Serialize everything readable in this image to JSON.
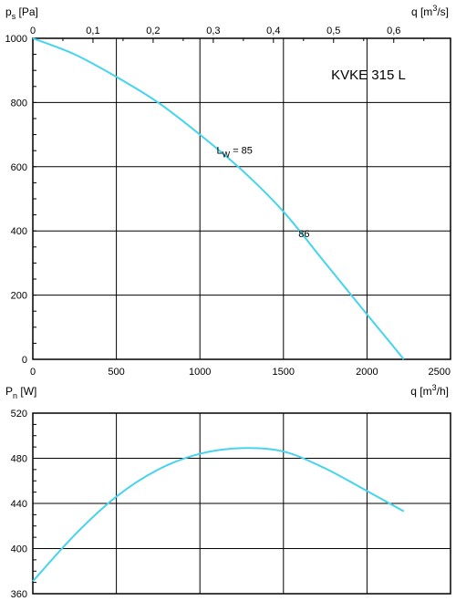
{
  "chart_data": [
    {
      "type": "line",
      "title": "KVKE 315 L",
      "ylabel": {
        "main": "p",
        "sub": "s",
        "unit": "[Pa]"
      },
      "xlabel": {
        "main": "q [m",
        "sup": "3",
        "tail": "/h]"
      },
      "x2label": {
        "main": "q [m",
        "sup": "3",
        "tail": "/s]"
      },
      "xlim": [
        0,
        2500
      ],
      "ylim": [
        0,
        1000
      ],
      "x2lim": [
        0,
        0.6944
      ],
      "xticks": [
        "0",
        "500",
        "1000",
        "1500",
        "2000",
        "2500"
      ],
      "yticks": [
        "0",
        "200",
        "400",
        "600",
        "800",
        "1000"
      ],
      "x2ticks": [
        "0",
        "0,1",
        "0,2",
        "0,3",
        "0,4",
        "0,5",
        "0,6"
      ],
      "grid": true,
      "series": [
        {
          "color": "#44d4ee",
          "x": [
            0,
            250,
            500,
            750,
            1000,
            1250,
            1500,
            1750,
            2000,
            2150,
            2220
          ],
          "y": [
            1000,
            950,
            880,
            800,
            700,
            590,
            460,
            300,
            140,
            45,
            0
          ]
        }
      ],
      "annotations": [
        {
          "main": "L",
          "sub": "W",
          "tail": " = 85",
          "x": 1100,
          "y": 640
        },
        {
          "main": "86",
          "sub": "",
          "tail": "",
          "x": 1590,
          "y": 380
        }
      ]
    },
    {
      "type": "line",
      "ylabel": {
        "main": "P",
        "sub": "n",
        "unit": "[W]"
      },
      "xlabel": {
        "main": "q [m",
        "sup": "3",
        "tail": "/h]"
      },
      "xlim": [
        0,
        2500
      ],
      "ylim": [
        360,
        520
      ],
      "yticks": [
        "360",
        "400",
        "440",
        "480",
        "520"
      ],
      "grid": true,
      "series": [
        {
          "color": "#44d4ee",
          "x": [
            0,
            250,
            500,
            750,
            1000,
            1250,
            1500,
            1750,
            2000,
            2220
          ],
          "y": [
            371,
            412,
            446,
            470,
            484,
            489,
            486,
            471,
            451,
            433
          ]
        }
      ]
    }
  ]
}
